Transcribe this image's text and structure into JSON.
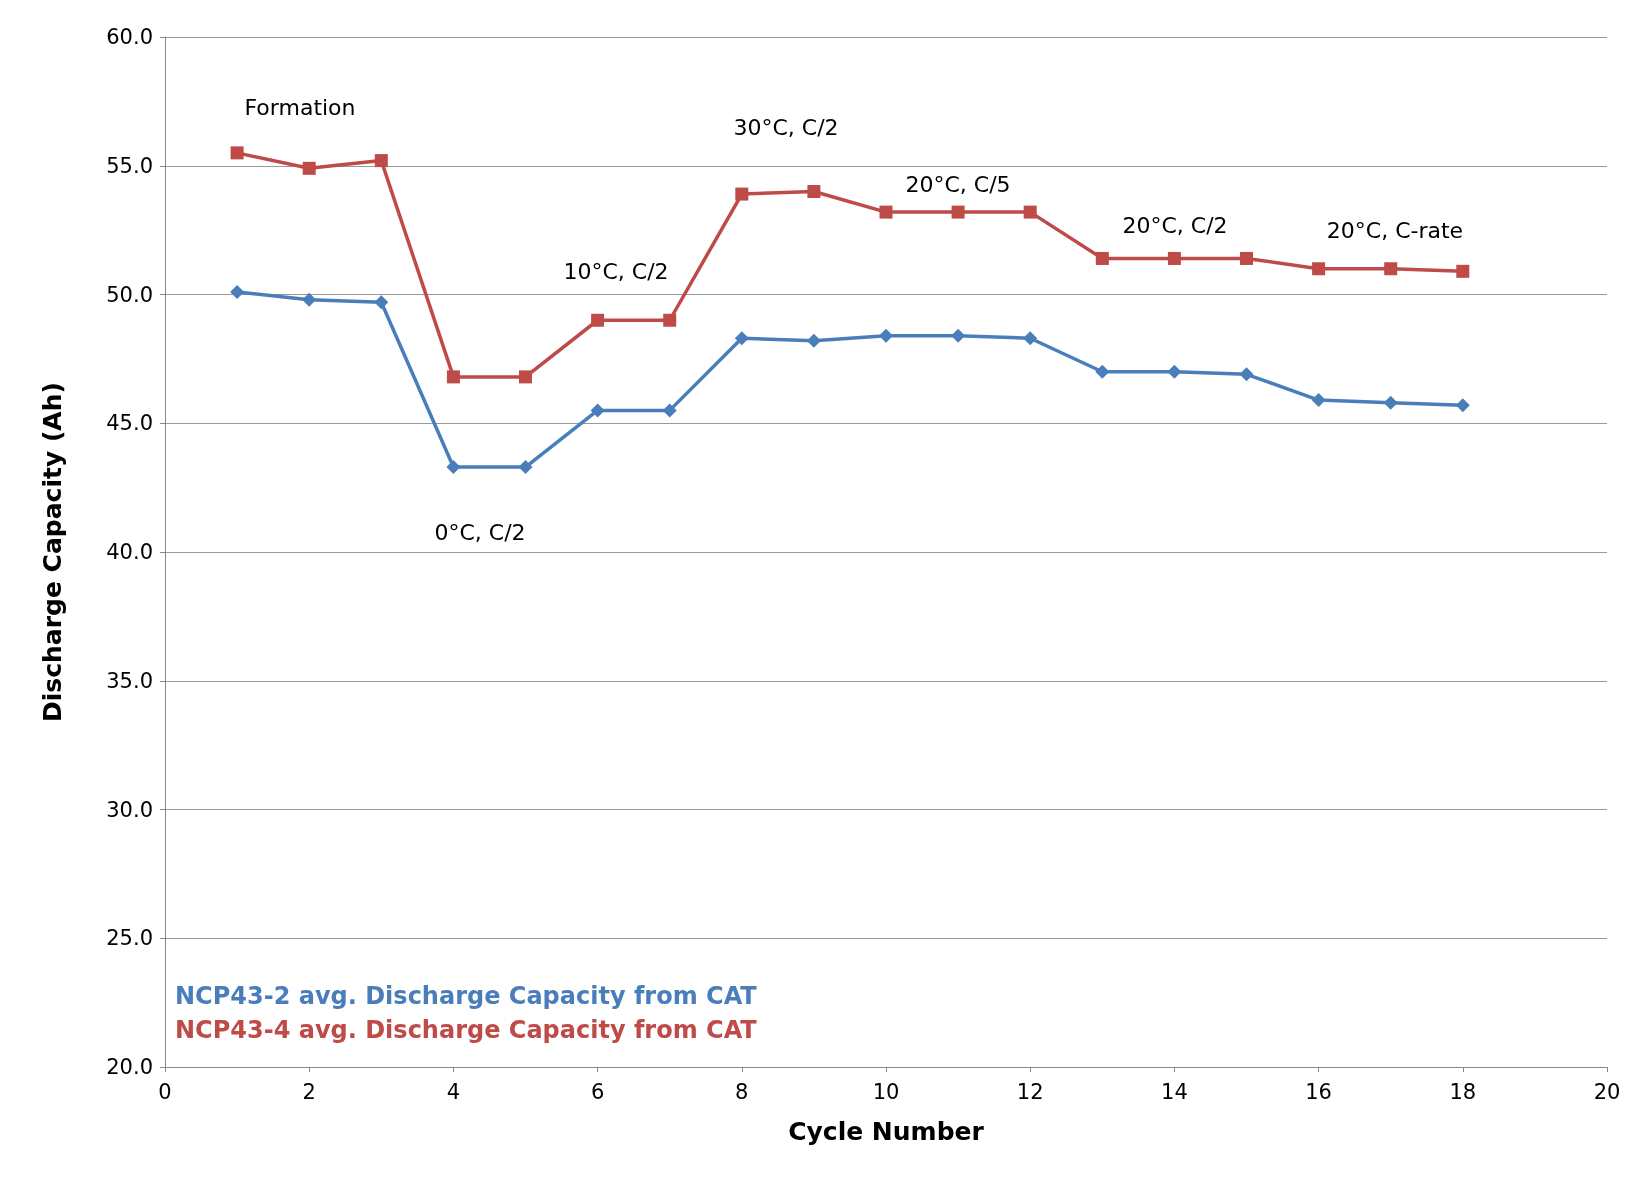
{
  "chart_data": {
    "type": "line",
    "xlabel": "Cycle Number",
    "ylabel": "Discharge Capacity (Ah)",
    "x": [
      1,
      2,
      3,
      4,
      5,
      6,
      7,
      8,
      9,
      10,
      11,
      12,
      13,
      14,
      15,
      16,
      17,
      18
    ],
    "series": [
      {
        "name": "NCP43-2 avg. Discharge Capacity from CAT",
        "color": "#4a7ebb",
        "marker": "diamond",
        "values": [
          50.1,
          49.8,
          49.7,
          43.3,
          43.3,
          45.5,
          45.5,
          48.3,
          48.2,
          48.4,
          48.4,
          48.3,
          47.0,
          47.0,
          46.9,
          45.9,
          45.8,
          45.7
        ]
      },
      {
        "name": "NCP43-4 avg. Discharge Capacity from CAT",
        "color": "#be4b48",
        "marker": "square",
        "values": [
          55.5,
          54.9,
          55.2,
          46.8,
          46.8,
          49.0,
          49.0,
          53.9,
          54.0,
          53.2,
          53.2,
          53.2,
          51.4,
          51.4,
          51.4,
          51.0,
          51.0,
          50.9
        ]
      }
    ],
    "xlim": [
      0,
      20
    ],
    "xticks": [
      0,
      2,
      4,
      6,
      8,
      10,
      12,
      14,
      16,
      18,
      20
    ],
    "ylim": [
      20,
      60
    ],
    "yticks": [
      {
        "value": 20,
        "label": "20.0"
      },
      {
        "value": 25,
        "label": "25.0"
      },
      {
        "value": 30,
        "label": "30.0"
      },
      {
        "value": 35,
        "label": "35.0"
      },
      {
        "value": 40,
        "label": "40.0"
      },
      {
        "value": 45,
        "label": "45.0"
      },
      {
        "value": 50,
        "label": "50.0"
      },
      {
        "value": 55,
        "label": "55.0"
      },
      {
        "value": 60,
        "label": "60.0"
      }
    ],
    "grid": "y",
    "legend": "bottom left",
    "line_style": "solid",
    "annotations": [
      "Formation",
      "0°C, C/2",
      "10°C, C/2",
      "30°C, C/2",
      "20°C, C/5",
      "20°C, C/2",
      "20°C, C-rate"
    ]
  }
}
